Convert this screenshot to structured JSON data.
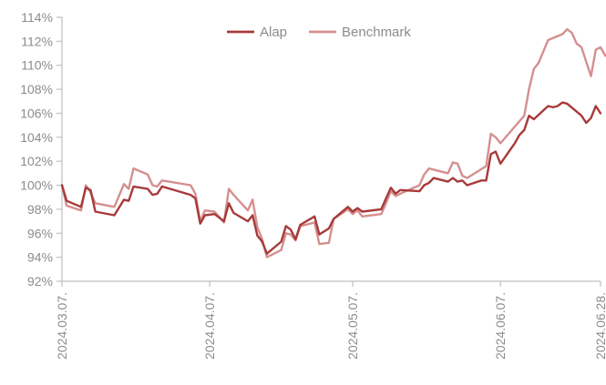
{
  "chart_data": {
    "type": "line",
    "title": "",
    "xlabel": "",
    "ylabel": "",
    "x_tick_labels": [
      "2024.03.07.",
      "2024.04.07.",
      "2024.05.07.",
      "2024.06.07.",
      "2024.06.28."
    ],
    "x_range": [
      "2024.03.07.",
      "2024.06.28."
    ],
    "y_ticks": [
      92,
      94,
      96,
      98,
      100,
      102,
      104,
      106,
      108,
      110,
      112,
      114
    ],
    "y_tick_labels": [
      "92%",
      "94%",
      "96%",
      "98%",
      "100%",
      "102%",
      "104%",
      "106%",
      "108%",
      "110%",
      "112%",
      "114%"
    ],
    "ylim": [
      92,
      114
    ],
    "grid": false,
    "legend_position": "top-center",
    "series": [
      {
        "name": "Alap",
        "color": "#a83a3a",
        "points": [
          [
            "2024-03-07",
            100.0
          ],
          [
            "2024-03-08",
            98.7
          ],
          [
            "2024-03-11",
            98.2
          ],
          [
            "2024-03-12",
            99.8
          ],
          [
            "2024-03-13",
            99.6
          ],
          [
            "2024-03-14",
            97.8
          ],
          [
            "2024-03-18",
            97.5
          ],
          [
            "2024-03-20",
            98.8
          ],
          [
            "2024-03-21",
            98.7
          ],
          [
            "2024-03-22",
            99.9
          ],
          [
            "2024-03-25",
            99.7
          ],
          [
            "2024-03-26",
            99.2
          ],
          [
            "2024-03-27",
            99.3
          ],
          [
            "2024-03-28",
            99.9
          ],
          [
            "2024-04-03",
            99.2
          ],
          [
            "2024-04-04",
            98.9
          ],
          [
            "2024-04-05",
            96.8
          ],
          [
            "2024-04-06",
            97.5
          ],
          [
            "2024-04-08",
            97.6
          ],
          [
            "2024-04-10",
            97.0
          ],
          [
            "2024-04-11",
            98.5
          ],
          [
            "2024-04-12",
            97.7
          ],
          [
            "2024-04-15",
            97.0
          ],
          [
            "2024-04-16",
            97.5
          ],
          [
            "2024-04-17",
            95.8
          ],
          [
            "2024-04-18",
            95.3
          ],
          [
            "2024-04-19",
            94.3
          ],
          [
            "2024-04-22",
            95.3
          ],
          [
            "2024-04-23",
            96.6
          ],
          [
            "2024-04-24",
            96.3
          ],
          [
            "2024-04-25",
            95.5
          ],
          [
            "2024-04-26",
            96.7
          ],
          [
            "2024-04-29",
            97.4
          ],
          [
            "2024-04-30",
            95.9
          ],
          [
            "2024-05-02",
            96.4
          ],
          [
            "2024-05-03",
            97.2
          ],
          [
            "2024-05-06",
            98.2
          ],
          [
            "2024-05-07",
            97.8
          ],
          [
            "2024-05-08",
            98.1
          ],
          [
            "2024-05-09",
            97.8
          ],
          [
            "2024-05-13",
            98.0
          ],
          [
            "2024-05-14",
            98.9
          ],
          [
            "2024-05-15",
            99.8
          ],
          [
            "2024-05-16",
            99.3
          ],
          [
            "2024-05-17",
            99.6
          ],
          [
            "2024-05-21",
            99.5
          ],
          [
            "2024-05-22",
            100.0
          ],
          [
            "2024-05-23",
            100.2
          ],
          [
            "2024-05-24",
            100.6
          ],
          [
            "2024-05-27",
            100.3
          ],
          [
            "2024-05-28",
            100.6
          ],
          [
            "2024-05-29",
            100.3
          ],
          [
            "2024-05-30",
            100.4
          ],
          [
            "2024-05-31",
            100.0
          ],
          [
            "2024-06-03",
            100.4
          ],
          [
            "2024-06-04",
            100.4
          ],
          [
            "2024-06-05",
            102.6
          ],
          [
            "2024-06-06",
            102.8
          ],
          [
            "2024-06-07",
            101.8
          ],
          [
            "2024-06-10",
            103.5
          ],
          [
            "2024-06-11",
            104.2
          ],
          [
            "2024-06-12",
            104.6
          ],
          [
            "2024-06-13",
            105.8
          ],
          [
            "2024-06-14",
            105.5
          ],
          [
            "2024-06-17",
            106.6
          ],
          [
            "2024-06-18",
            106.5
          ],
          [
            "2024-06-19",
            106.6
          ],
          [
            "2024-06-20",
            106.9
          ],
          [
            "2024-06-21",
            106.8
          ],
          [
            "2024-06-24",
            105.8
          ],
          [
            "2024-06-25",
            105.2
          ],
          [
            "2024-06-26",
            105.6
          ],
          [
            "2024-06-27",
            106.6
          ],
          [
            "2024-06-28",
            106.0
          ]
        ]
      },
      {
        "name": "Benchmark",
        "color": "#d58f8f",
        "points": [
          [
            "2024-03-07",
            100.0
          ],
          [
            "2024-03-08",
            98.3
          ],
          [
            "2024-03-11",
            97.9
          ],
          [
            "2024-03-12",
            100.0
          ],
          [
            "2024-03-13",
            99.4
          ],
          [
            "2024-03-14",
            98.5
          ],
          [
            "2024-03-18",
            98.2
          ],
          [
            "2024-03-20",
            100.1
          ],
          [
            "2024-03-21",
            99.7
          ],
          [
            "2024-03-22",
            101.4
          ],
          [
            "2024-03-25",
            100.9
          ],
          [
            "2024-03-26",
            100.0
          ],
          [
            "2024-03-27",
            99.9
          ],
          [
            "2024-03-28",
            100.4
          ],
          [
            "2024-04-03",
            100.0
          ],
          [
            "2024-04-04",
            99.3
          ],
          [
            "2024-04-05",
            97.0
          ],
          [
            "2024-04-06",
            97.9
          ],
          [
            "2024-04-08",
            97.8
          ],
          [
            "2024-04-10",
            96.9
          ],
          [
            "2024-04-11",
            99.7
          ],
          [
            "2024-04-12",
            99.2
          ],
          [
            "2024-04-15",
            97.9
          ],
          [
            "2024-04-16",
            98.8
          ],
          [
            "2024-04-17",
            96.5
          ],
          [
            "2024-04-18",
            95.5
          ],
          [
            "2024-04-19",
            94.0
          ],
          [
            "2024-04-22",
            94.6
          ],
          [
            "2024-04-23",
            96.0
          ],
          [
            "2024-04-24",
            95.9
          ],
          [
            "2024-04-25",
            95.4
          ],
          [
            "2024-04-26",
            96.6
          ],
          [
            "2024-04-29",
            96.9
          ],
          [
            "2024-04-30",
            95.1
          ],
          [
            "2024-05-02",
            95.2
          ],
          [
            "2024-05-03",
            97.2
          ],
          [
            "2024-05-06",
            98.0
          ],
          [
            "2024-05-07",
            97.6
          ],
          [
            "2024-05-08",
            97.9
          ],
          [
            "2024-05-09",
            97.4
          ],
          [
            "2024-05-13",
            97.6
          ],
          [
            "2024-05-14",
            98.5
          ],
          [
            "2024-05-15",
            99.5
          ],
          [
            "2024-05-16",
            99.1
          ],
          [
            "2024-05-17",
            99.3
          ],
          [
            "2024-05-21",
            100.0
          ],
          [
            "2024-05-22",
            100.9
          ],
          [
            "2024-05-23",
            101.4
          ],
          [
            "2024-05-27",
            101.0
          ],
          [
            "2024-05-28",
            101.9
          ],
          [
            "2024-05-29",
            101.8
          ],
          [
            "2024-05-30",
            100.8
          ],
          [
            "2024-05-31",
            100.6
          ],
          [
            "2024-06-04",
            101.6
          ],
          [
            "2024-06-05",
            104.3
          ],
          [
            "2024-06-06",
            104.0
          ],
          [
            "2024-06-07",
            103.5
          ],
          [
            "2024-06-12",
            105.8
          ],
          [
            "2024-06-13",
            108.0
          ],
          [
            "2024-06-14",
            109.7
          ],
          [
            "2024-06-15",
            110.2
          ],
          [
            "2024-06-17",
            112.1
          ],
          [
            "2024-06-20",
            112.6
          ],
          [
            "2024-06-21",
            113.0
          ],
          [
            "2024-06-22",
            112.7
          ],
          [
            "2024-06-23",
            111.8
          ],
          [
            "2024-06-24",
            111.5
          ],
          [
            "2024-06-26",
            109.1
          ],
          [
            "2024-06-27",
            111.3
          ],
          [
            "2024-06-28",
            111.5
          ],
          [
            "2024-06-29",
            110.8
          ]
        ]
      }
    ]
  }
}
